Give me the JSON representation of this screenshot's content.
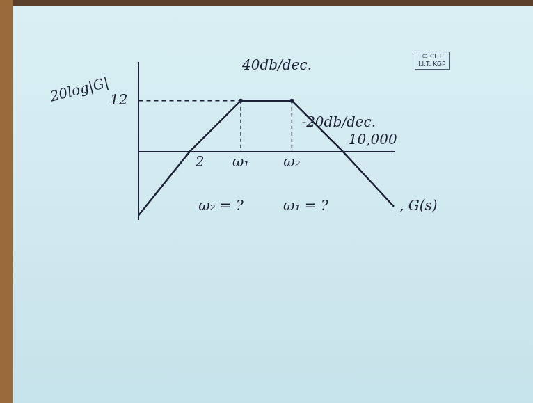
{
  "chart_data": {
    "type": "line",
    "y_label": "20log|G|",
    "categories": [
      null,
      "2",
      "ω₁",
      "ω₂",
      "10,000",
      null
    ],
    "values": [
      -15,
      0,
      12,
      12,
      0,
      -13
    ],
    "color": "#1b2236",
    "ylim": [
      -16,
      21
    ],
    "yticks": [
      12
    ],
    "grid": false,
    "annotations": [
      "40db/dec.",
      "-20db/dec.",
      "ω₂ = ?",
      "ω₁ = ?",
      ", G(s)"
    ],
    "watermark": [
      "© CET",
      "I.I.T. KGP"
    ]
  }
}
